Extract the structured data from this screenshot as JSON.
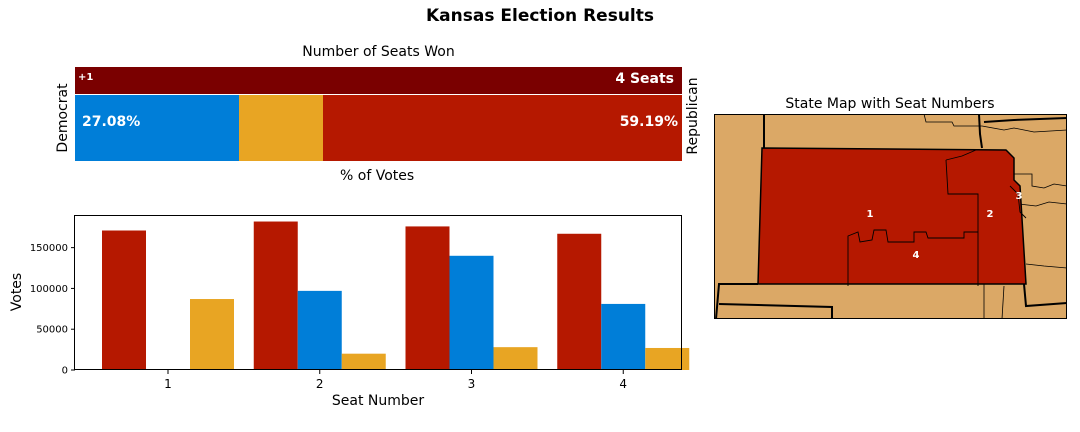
{
  "title": "Kansas Election Results",
  "seat_panel": {
    "title": "Number of Seats Won",
    "plus_label": "+1",
    "seats_label": "4 Seats",
    "dem_pct_label": "27.08%",
    "rep_pct_label": "59.19%",
    "left_side_label": "Democrat",
    "right_side_label": "Republican",
    "votes_axis_label": "% of Votes"
  },
  "map_panel": {
    "title": "State Map with Seat Numbers",
    "district_labels": [
      "1",
      "2",
      "3",
      "4"
    ]
  },
  "colors": {
    "republican": "#B51800",
    "republican_dark": "#7A0000",
    "democrat": "#007ED8",
    "other": "#E8A523",
    "map_background": "#DBA866",
    "map_state": "#B51800"
  },
  "chart_data": [
    {
      "type": "bar",
      "title": "Number of Seats Won",
      "xlabel": "% of Votes",
      "series": [
        {
          "name": "Democrat",
          "values": [
            27.08
          ]
        },
        {
          "name": "Other",
          "values": [
            13.73
          ]
        },
        {
          "name": "Republican",
          "values": [
            59.19
          ]
        }
      ],
      "seats": {
        "republican": 4,
        "label": "4 Seats",
        "change": "+1"
      }
    },
    {
      "type": "bar",
      "title": "",
      "xlabel": "Seat Number",
      "ylabel": "Votes",
      "categories": [
        "1",
        "2",
        "3",
        "4"
      ],
      "ylim": [
        0,
        190000
      ],
      "yticks": [
        0,
        50000,
        100000,
        150000
      ],
      "series": [
        {
          "values": [
            171000,
            182000,
            176000,
            167000
          ]
        },
        {
          "values": [
            0,
            97000,
            140000,
            81000
          ]
        },
        {
          "values": [
            87000,
            20000,
            28000,
            27000
          ]
        }
      ],
      "grid": false
    }
  ]
}
